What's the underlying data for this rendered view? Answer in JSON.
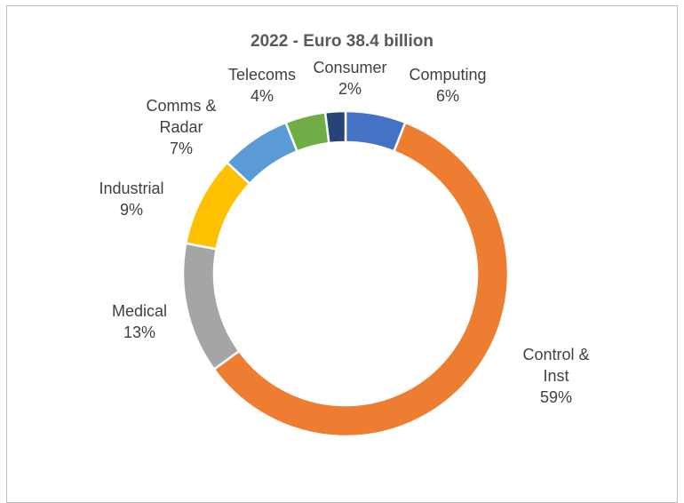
{
  "chart_data": {
    "type": "pie",
    "variant": "donut",
    "title": "2022 - Euro 38.4 billion",
    "slices": [
      {
        "name": "Computing",
        "label_lines": [
          "Computing",
          "6%"
        ],
        "value": 6,
        "color": "#4472C4"
      },
      {
        "name": "Control & Inst",
        "label_lines": [
          "Control &",
          "Inst",
          "59%"
        ],
        "value": 59,
        "color": "#ED7D31"
      },
      {
        "name": "Medical",
        "label_lines": [
          "Medical",
          "13%"
        ],
        "value": 13,
        "color": "#A5A5A5"
      },
      {
        "name": "Industrial",
        "label_lines": [
          "Industrial",
          "9%"
        ],
        "value": 9,
        "color": "#FFC000"
      },
      {
        "name": "Comms & Radar",
        "label_lines": [
          "Comms &",
          "Radar",
          "7%"
        ],
        "value": 7,
        "color": "#5B9BD5"
      },
      {
        "name": "Telecoms",
        "label_lines": [
          "Telecoms",
          "4%"
        ],
        "value": 4,
        "color": "#70AD47"
      },
      {
        "name": "Consumer",
        "label_lines": [
          "Consumer",
          "2%"
        ],
        "value": 2,
        "color": "#264478"
      }
    ],
    "legend": "none",
    "start_angle_deg": 0,
    "direction": "clockwise"
  }
}
